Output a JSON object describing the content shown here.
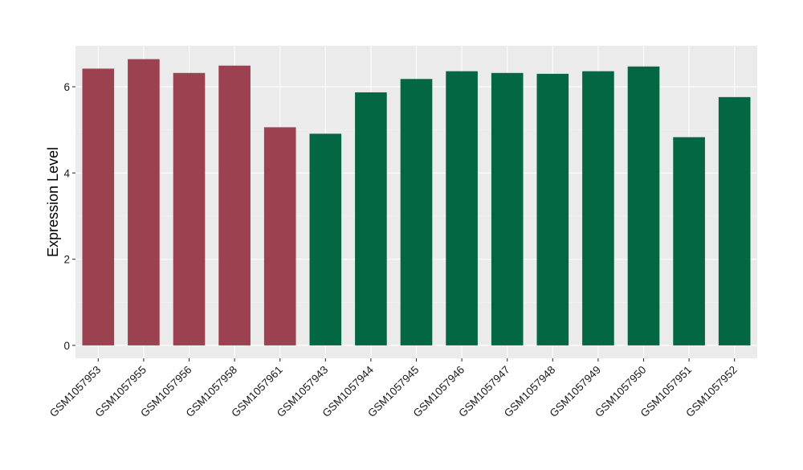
{
  "chart_data": {
    "type": "bar",
    "ylabel": "Expression Level",
    "xlabel": "",
    "ylim": [
      -0.3,
      6.95
    ],
    "y_ticks": [
      0,
      2,
      4,
      6
    ],
    "grid": true,
    "legend": "none",
    "colors": {
      "group_a": "#9b4150",
      "group_b": "#026742",
      "panel": "#ebebeb",
      "gridline": "#ffffff"
    },
    "categories": [
      "GSM1057953",
      "GSM1057955",
      "GSM1057956",
      "GSM1057958",
      "GSM1057961",
      "GSM1057943",
      "GSM1057944",
      "GSM1057945",
      "GSM1057946",
      "GSM1057947",
      "GSM1057948",
      "GSM1057949",
      "GSM1057950",
      "GSM1057951",
      "GSM1057952"
    ],
    "values": [
      6.42,
      6.64,
      6.32,
      6.49,
      5.06,
      4.91,
      5.87,
      6.18,
      6.36,
      6.32,
      6.3,
      6.36,
      6.47,
      4.83,
      5.76
    ],
    "groups": [
      "group_a",
      "group_a",
      "group_a",
      "group_a",
      "group_a",
      "group_b",
      "group_b",
      "group_b",
      "group_b",
      "group_b",
      "group_b",
      "group_b",
      "group_b",
      "group_b",
      "group_b"
    ]
  }
}
